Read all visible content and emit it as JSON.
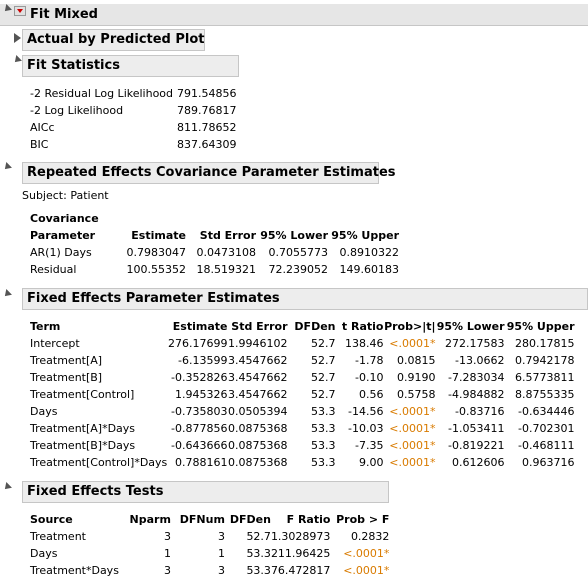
{
  "report": {
    "title": "Fit Mixed"
  },
  "actual_by_predicted": {
    "title": "Actual by Predicted Plot"
  },
  "fit_statistics": {
    "title": "Fit Statistics",
    "rows": [
      {
        "label": "-2 Residual Log Likelihood",
        "value": "791.54856"
      },
      {
        "label": "-2 Log Likelihood",
        "value": "789.76817"
      },
      {
        "label": "AICc",
        "value": "811.78652"
      },
      {
        "label": "BIC",
        "value": "837.64309"
      }
    ]
  },
  "repeated_effects": {
    "title": "Repeated Effects Covariance Parameter Estimates",
    "subject": "Subject: Patient",
    "headers": [
      "Covariance",
      "Parameter",
      "Estimate",
      "Std Error",
      "95% Lower",
      "95% Upper"
    ],
    "rows": [
      {
        "param": "AR(1) Days",
        "estimate": "0.7983047",
        "std_error": "0.0473108",
        "lower": "0.7055773",
        "upper": "0.8910322"
      },
      {
        "param": "Residual",
        "estimate": "100.55352",
        "std_error": "18.519321",
        "lower": "72.239052",
        "upper": "149.60183"
      }
    ]
  },
  "fixed_effects_estimates": {
    "title": "Fixed Effects Parameter Estimates",
    "headers": [
      "Term",
      "Estimate",
      "Std Error",
      "DFDen",
      "t Ratio",
      "Prob>|t|",
      "95% Lower",
      "95% Upper"
    ],
    "rows": [
      {
        "term": "Intercept",
        "estimate": "276.17699",
        "std_error": "1.9946102",
        "dfden": "52.7",
        "t_ratio": "138.46",
        "prob": "<.0001*",
        "lower": "272.17583",
        "upper": "280.17815",
        "sig": true
      },
      {
        "term": "Treatment[A]",
        "estimate": "-6.13599",
        "std_error": "3.4547662",
        "dfden": "52.7",
        "t_ratio": "-1.78",
        "prob": "0.0815",
        "lower": "-13.0662",
        "upper": "0.7942178",
        "sig": false
      },
      {
        "term": "Treatment[B]",
        "estimate": "-0.352826",
        "std_error": "3.4547662",
        "dfden": "52.7",
        "t_ratio": "-0.10",
        "prob": "0.9190",
        "lower": "-7.283034",
        "upper": "6.5773811",
        "sig": false
      },
      {
        "term": "Treatment[Control]",
        "estimate": "1.945326",
        "std_error": "3.4547662",
        "dfden": "52.7",
        "t_ratio": "0.56",
        "prob": "0.5758",
        "lower": "-4.984882",
        "upper": "8.8755335",
        "sig": false
      },
      {
        "term": "Days",
        "estimate": "-0.735803",
        "std_error": "0.0505394",
        "dfden": "53.3",
        "t_ratio": "-14.56",
        "prob": "<.0001*",
        "lower": "-0.83716",
        "upper": "-0.634446",
        "sig": true
      },
      {
        "term": "Treatment[A]*Days",
        "estimate": "-0.877856",
        "std_error": "0.0875368",
        "dfden": "53.3",
        "t_ratio": "-10.03",
        "prob": "<.0001*",
        "lower": "-1.053411",
        "upper": "-0.702301",
        "sig": true
      },
      {
        "term": "Treatment[B]*Days",
        "estimate": "-0.643666",
        "std_error": "0.0875368",
        "dfden": "53.3",
        "t_ratio": "-7.35",
        "prob": "<.0001*",
        "lower": "-0.819221",
        "upper": "-0.468111",
        "sig": true
      },
      {
        "term": "Treatment[Control]*Days",
        "estimate": "0.788161",
        "std_error": "0.0875368",
        "dfden": "53.3",
        "t_ratio": "9.00",
        "prob": "<.0001*",
        "lower": "0.612606",
        "upper": "0.963716",
        "sig": true
      }
    ]
  },
  "fixed_effects_tests": {
    "title": "Fixed Effects Tests",
    "headers": [
      "Source",
      "Nparm",
      "DFNum",
      "DFDen",
      "F Ratio",
      "Prob > F"
    ],
    "rows": [
      {
        "source": "Treatment",
        "nparm": "3",
        "dfnum": "3",
        "dfden": "52.7",
        "f_ratio": "1.3028973",
        "prob": "0.2832",
        "sig": false
      },
      {
        "source": "Days",
        "nparm": "1",
        "dfnum": "1",
        "dfden": "53.3",
        "f_ratio": "211.96425",
        "prob": "<.0001*",
        "sig": true
      },
      {
        "source": "Treatment*Days",
        "nparm": "3",
        "dfnum": "3",
        "dfden": "53.3",
        "f_ratio": "76.472817",
        "prob": "<.0001*",
        "sig": true
      }
    ]
  },
  "colors": {
    "significant": "#d97b00",
    "menu_arrow": "#cc0000",
    "header_bg": "#ededed"
  }
}
